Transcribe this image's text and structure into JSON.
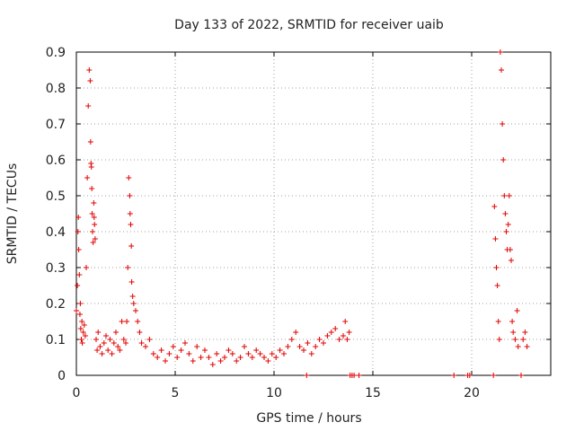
{
  "chart_data": {
    "type": "scatter",
    "title": "Day 133 of 2022, SRMTID for receiver uaib",
    "xlabel": "GPS time / hours",
    "ylabel": "SRMTID / TECUs",
    "xlim": [
      0,
      24
    ],
    "ylim": [
      0,
      0.9
    ],
    "xticks": [
      0,
      5,
      10,
      15,
      20
    ],
    "xtick_labels": [
      "0",
      "5",
      "10",
      "15",
      "20"
    ],
    "yticks": [
      0,
      0.1,
      0.2,
      0.3,
      0.4,
      0.5,
      0.6,
      0.7,
      0.8,
      0.9
    ],
    "ytick_labels": [
      "0",
      "0.1",
      "0.2",
      "0.3",
      "0.4",
      "0.5",
      "0.6",
      "0.7",
      "0.8",
      "0.9"
    ],
    "grid": true,
    "marker": "plus",
    "series": [
      {
        "name": "SRMTID",
        "color": "#e00000",
        "x": [
          0.0,
          0.05,
          0.08,
          0.1,
          0.12,
          0.15,
          0.18,
          0.2,
          0.22,
          0.25,
          0.28,
          0.3,
          0.35,
          0.4,
          0.45,
          0.5,
          0.55,
          0.6,
          0.65,
          0.7,
          0.72,
          0.74,
          0.76,
          0.78,
          0.8,
          0.82,
          0.85,
          0.88,
          0.9,
          0.92,
          0.95,
          1.0,
          1.05,
          1.1,
          1.2,
          1.3,
          1.4,
          1.5,
          1.6,
          1.7,
          1.8,
          1.9,
          2.0,
          2.1,
          2.2,
          2.3,
          2.4,
          2.5,
          2.55,
          2.6,
          2.65,
          2.7,
          2.72,
          2.75,
          2.78,
          2.8,
          2.85,
          2.9,
          3.0,
          3.1,
          3.2,
          3.3,
          3.5,
          3.7,
          3.9,
          4.1,
          4.3,
          4.5,
          4.7,
          4.9,
          5.1,
          5.3,
          5.5,
          5.7,
          5.9,
          6.1,
          6.3,
          6.5,
          6.7,
          6.9,
          7.1,
          7.3,
          7.5,
          7.7,
          7.9,
          8.1,
          8.3,
          8.5,
          8.7,
          8.9,
          9.1,
          9.3,
          9.5,
          9.7,
          9.9,
          10.1,
          10.3,
          10.5,
          10.7,
          10.9,
          11.1,
          11.3,
          11.5,
          11.7,
          11.9,
          12.1,
          12.3,
          12.5,
          12.7,
          12.9,
          13.1,
          13.3,
          13.5,
          13.6,
          13.7,
          13.8,
          11.65,
          13.85,
          13.95,
          14.05,
          14.3,
          19.1,
          19.8,
          19.9,
          21.1,
          21.15,
          21.2,
          21.25,
          21.3,
          21.35,
          21.4,
          21.45,
          21.5,
          21.55,
          21.6,
          21.65,
          21.7,
          21.75,
          21.8,
          21.85,
          21.9,
          21.95,
          22.0,
          22.05,
          22.1,
          22.2,
          22.3,
          22.35,
          22.5,
          22.6,
          22.7,
          22.8
        ],
        "y": [
          0.18,
          0.25,
          0.4,
          0.44,
          0.35,
          0.28,
          0.17,
          0.2,
          0.13,
          0.1,
          0.15,
          0.09,
          0.12,
          0.14,
          0.11,
          0.3,
          0.55,
          0.75,
          0.85,
          0.82,
          0.65,
          0.59,
          0.58,
          0.52,
          0.45,
          0.4,
          0.37,
          0.48,
          0.44,
          0.42,
          0.38,
          0.1,
          0.07,
          0.12,
          0.08,
          0.06,
          0.09,
          0.11,
          0.07,
          0.1,
          0.06,
          0.09,
          0.12,
          0.08,
          0.07,
          0.15,
          0.1,
          0.09,
          0.15,
          0.3,
          0.55,
          0.5,
          0.45,
          0.42,
          0.36,
          0.26,
          0.22,
          0.2,
          0.18,
          0.15,
          0.12,
          0.09,
          0.08,
          0.1,
          0.06,
          0.05,
          0.07,
          0.04,
          0.06,
          0.08,
          0.05,
          0.07,
          0.09,
          0.06,
          0.04,
          0.08,
          0.05,
          0.07,
          0.05,
          0.03,
          0.06,
          0.04,
          0.05,
          0.07,
          0.06,
          0.04,
          0.05,
          0.08,
          0.06,
          0.05,
          0.07,
          0.06,
          0.05,
          0.04,
          0.06,
          0.05,
          0.07,
          0.06,
          0.08,
          0.1,
          0.12,
          0.08,
          0.07,
          0.09,
          0.06,
          0.08,
          0.1,
          0.09,
          0.11,
          0.12,
          0.13,
          0.1,
          0.11,
          0.15,
          0.1,
          0.12,
          0.0,
          0.0,
          0.0,
          0.0,
          0.0,
          0.0,
          0.0,
          0.0,
          0.0,
          0.47,
          0.38,
          0.3,
          0.25,
          0.15,
          0.1,
          0.9,
          0.85,
          0.7,
          0.6,
          0.5,
          0.45,
          0.4,
          0.35,
          0.42,
          0.5,
          0.35,
          0.32,
          0.15,
          0.12,
          0.1,
          0.18,
          0.08,
          0.0,
          0.1,
          0.12,
          0.08
        ]
      }
    ]
  }
}
